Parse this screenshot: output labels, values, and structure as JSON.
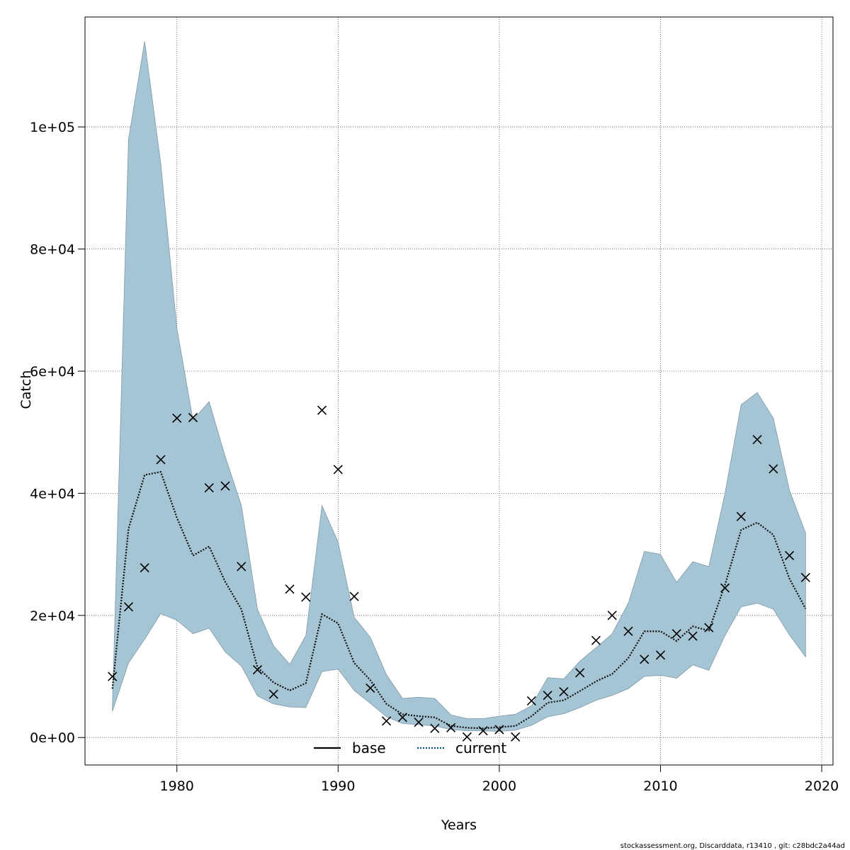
{
  "chart_data": {
    "type": "line",
    "xlabel": "Years",
    "ylabel": "Catch",
    "xlim": [
      1974.3,
      2020.7
    ],
    "ylim": [
      -4500,
      118000
    ],
    "x_ticks": [
      1980,
      1990,
      2000,
      2010,
      2020
    ],
    "x_tick_labels": [
      "1980",
      "1990",
      "2000",
      "2010",
      "2020"
    ],
    "y_ticks": [
      0,
      20000,
      40000,
      60000,
      80000,
      100000
    ],
    "y_tick_labels": [
      "0e+00",
      "2e+04",
      "4e+04",
      "6e+04",
      "8e+04",
      "1e+05"
    ],
    "grid": true,
    "band_color": "#a5c4d4",
    "band_edge_color": "#7f9aa8",
    "current_color": "#00508a",
    "legend": {
      "placement": "bottom",
      "entries": [
        {
          "name": "base",
          "style": "solid",
          "color": "#000000"
        },
        {
          "name": "current",
          "style": "dotted",
          "color": "#00508a"
        }
      ]
    },
    "years": [
      1976,
      1977,
      1978,
      1979,
      1980,
      1981,
      1982,
      1983,
      1984,
      1985,
      1986,
      1987,
      1988,
      1989,
      1990,
      1991,
      1992,
      1993,
      1994,
      1995,
      1996,
      1997,
      1998,
      1999,
      2000,
      2001,
      2002,
      2003,
      2004,
      2005,
      2006,
      2007,
      2008,
      2009,
      2010,
      2011,
      2012,
      2013,
      2014,
      2015,
      2016,
      2017,
      2018,
      2019
    ],
    "band_upper": [
      5000,
      98000,
      114000,
      94000,
      67000,
      52000,
      55000,
      46000,
      38000,
      21000,
      15000,
      12000,
      16700,
      38000,
      32000,
      19700,
      16400,
      10300,
      6400,
      6600,
      6400,
      3700,
      3100,
      3100,
      3500,
      3800,
      5200,
      9800,
      9600,
      12500,
      14700,
      17000,
      22000,
      30500,
      30000,
      25400,
      28800,
      28000,
      40000,
      54500,
      56500,
      52300,
      40500,
      33500
    ],
    "band_lower": [
      4300,
      12200,
      16100,
      20300,
      19200,
      17000,
      17900,
      14000,
      11700,
      6800,
      5500,
      5000,
      4900,
      10800,
      11200,
      7700,
      5600,
      3400,
      2300,
      2100,
      1900,
      1300,
      1100,
      1100,
      1000,
      1200,
      2000,
      3400,
      3900,
      4900,
      6100,
      6900,
      8000,
      10000,
      10200,
      9700,
      11900,
      11000,
      16700,
      21400,
      22000,
      21000,
      16800,
      13200
    ],
    "series": [
      {
        "name": "current",
        "values": [
          8000,
          34200,
          43000,
          43500,
          36000,
          29800,
          31300,
          25500,
          21000,
          11500,
          9000,
          7700,
          8900,
          20200,
          18700,
          12200,
          9400,
          5500,
          3800,
          3500,
          3300,
          1900,
          1600,
          1500,
          1700,
          1900,
          3500,
          5700,
          6100,
          7600,
          9200,
          10400,
          13000,
          17400,
          17400,
          15800,
          18200,
          17500,
          25000,
          34000,
          35200,
          33200,
          26000,
          21100
        ]
      }
    ],
    "observed": [
      10000,
      21400,
      27800,
      45500,
      52300,
      52400,
      40900,
      41200,
      28000,
      11100,
      7100,
      24300,
      23000,
      53600,
      43900,
      23100,
      8100,
      2700,
      3300,
      2500,
      1500,
      1600,
      100,
      1100,
      1300,
      100,
      6000,
      6900,
      7500,
      10600,
      15900,
      20000,
      17400,
      12800,
      13500,
      17000,
      16600,
      18000,
      24500,
      36200,
      48800,
      44000,
      29800,
      26200
    ]
  },
  "footer": "stockassessment.org, Discarddata, r13410 , git: c28bdc2a44ad"
}
